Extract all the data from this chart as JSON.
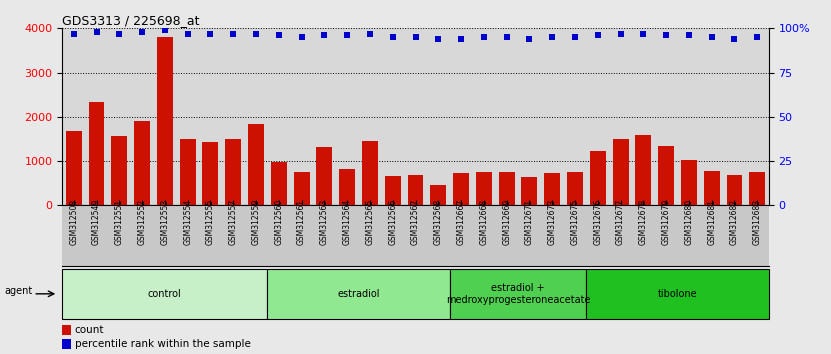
{
  "title": "GDS3313 / 225698_at",
  "samples": [
    "GSM312508",
    "GSM312549",
    "GSM312551",
    "GSM312552",
    "GSM312553",
    "GSM312554",
    "GSM312555",
    "GSM312557",
    "GSM312559",
    "GSM312560",
    "GSM312561",
    "GSM312563",
    "GSM312564",
    "GSM312565",
    "GSM312566",
    "GSM312567",
    "GSM312568",
    "GSM312667",
    "GSM312668",
    "GSM312669",
    "GSM312671",
    "GSM312673",
    "GSM312675",
    "GSM312676",
    "GSM312677",
    "GSM312678",
    "GSM312679",
    "GSM312680",
    "GSM312681",
    "GSM312682",
    "GSM312683"
  ],
  "counts": [
    1680,
    2340,
    1570,
    1900,
    3800,
    1490,
    1440,
    1490,
    1830,
    980,
    750,
    1310,
    820,
    1450,
    670,
    680,
    470,
    740,
    760,
    760,
    640,
    740,
    750,
    1230,
    1490,
    1600,
    1330,
    1020,
    770,
    680,
    760
  ],
  "percentiles": [
    97,
    98,
    97,
    98,
    99,
    97,
    97,
    97,
    97,
    96,
    95,
    96,
    96,
    97,
    95,
    95,
    94,
    94,
    95,
    95,
    94,
    95,
    95,
    96,
    97,
    97,
    96,
    96,
    95,
    94,
    95
  ],
  "groups": [
    {
      "label": "control",
      "start": 0,
      "end": 9,
      "color": "#c8f0c8"
    },
    {
      "label": "estradiol",
      "start": 9,
      "end": 17,
      "color": "#90e890"
    },
    {
      "label": "estradiol +\nmedroxyprogesteroneacetate",
      "start": 17,
      "end": 23,
      "color": "#50d050"
    },
    {
      "label": "tibolone",
      "start": 23,
      "end": 31,
      "color": "#20c020"
    }
  ],
  "bar_color": "#cc1100",
  "dot_color": "#0000cc",
  "ylim_left": [
    0,
    4000
  ],
  "ylim_right": [
    0,
    100
  ],
  "yticks_left": [
    0,
    1000,
    2000,
    3000,
    4000
  ],
  "yticks_right": [
    0,
    25,
    50,
    75,
    100
  ],
  "ytick_labels_right": [
    "0",
    "25",
    "50",
    "75",
    "100%"
  ],
  "agent_label": "agent",
  "legend_count": "count",
  "legend_pct": "percentile rank within the sample",
  "background_color": "#e8e8e8",
  "plot_bg": "#d8d8d8",
  "tick_bg": "#c8c8c8"
}
